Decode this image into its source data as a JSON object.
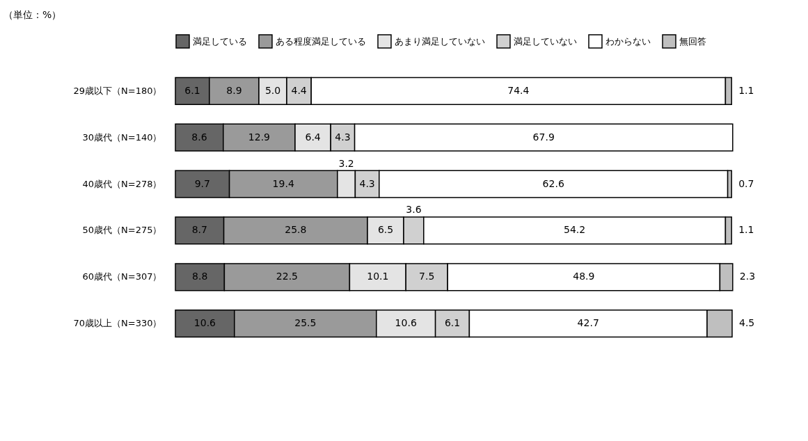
{
  "chart_data": {
    "type": "bar",
    "orientation": "horizontal",
    "stacked": true,
    "data_labels": true,
    "legend": "top",
    "tick_labels": "y",
    "xlim": [
      0,
      100
    ],
    "annotations": [
      "（単位：%）"
    ],
    "categories": [
      "29歳以下（N=180）",
      "30歳代（N=140）",
      "40歳代（N=278）",
      "50歳代（N=275）",
      "60歳代（N=307）",
      "70歳以上（N=330）"
    ],
    "series": [
      {
        "name": "満足している",
        "color": "#666666",
        "values": [
          6.1,
          8.6,
          9.7,
          8.7,
          8.8,
          10.6
        ]
      },
      {
        "name": "ある程度満足している",
        "color": "#9a9a9a",
        "values": [
          8.9,
          12.9,
          19.4,
          25.8,
          22.5,
          25.5
        ]
      },
      {
        "name": "あまり満足していない",
        "color": "#e4e4e4",
        "values": [
          5.0,
          6.4,
          3.2,
          6.5,
          10.1,
          10.6
        ],
        "value_labels": [
          "5.0",
          "6.4",
          "3.2",
          "6.5",
          "10.1",
          "10.6"
        ]
      },
      {
        "name": "満足していない",
        "color": "#d0d0d0",
        "values": [
          4.4,
          4.3,
          4.3,
          3.6,
          7.5,
          6.1
        ]
      },
      {
        "name": "わからない",
        "color": "#ffffff",
        "values": [
          74.4,
          67.9,
          62.6,
          54.2,
          48.9,
          42.7
        ]
      },
      {
        "name": "無回答",
        "color": "#bfbfbf",
        "values": [
          1.1,
          null,
          0.7,
          1.1,
          2.3,
          4.5
        ]
      }
    ]
  }
}
